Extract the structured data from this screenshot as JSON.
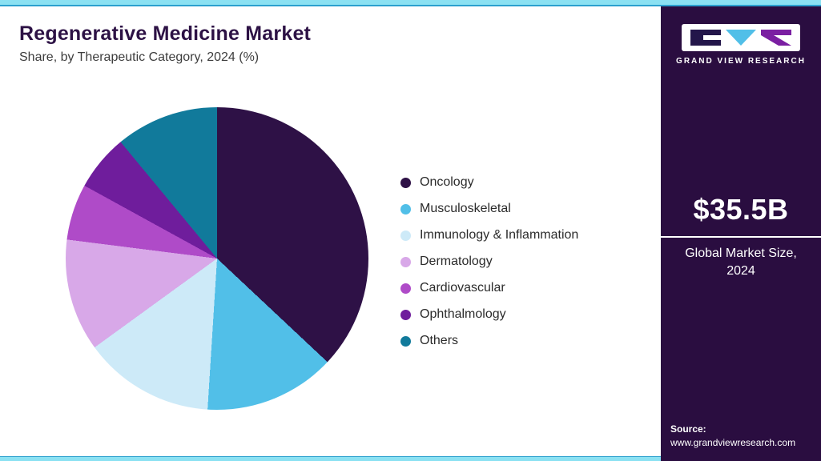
{
  "header": {
    "title": "Regenerative Medicine Market",
    "subtitle": "Share, by Therapeutic Category, 2024 (%)"
  },
  "sidebar": {
    "logo_text": "GRAND VIEW RESEARCH",
    "market_size": "$35.5B",
    "market_size_label": "Global Market Size, 2024",
    "source_label": "Source:",
    "source_url": "www.grandviewresearch.com",
    "background_color": "#2A0D40",
    "accent_color": "#8BE1F2"
  },
  "chart_data": {
    "type": "pie",
    "title": "Regenerative Medicine Market Share, by Therapeutic Category, 2024 (%)",
    "categories": [
      "Oncology",
      "Musculoskeletal",
      "Immunology & Inflammation",
      "Dermatology",
      "Cardiovascular",
      "Ophthalmology",
      "Others"
    ],
    "values": [
      37,
      14,
      14,
      12,
      6,
      6,
      11
    ],
    "unit": "%",
    "colors": [
      "#2E1146",
      "#51BFE8",
      "#CDEAF8",
      "#D8A8E8",
      "#AF4BC8",
      "#6F1D9C",
      "#117A9B"
    ],
    "start_angle": 0,
    "direction": "clockwise",
    "legend_position": "right",
    "data_labels": "none"
  }
}
